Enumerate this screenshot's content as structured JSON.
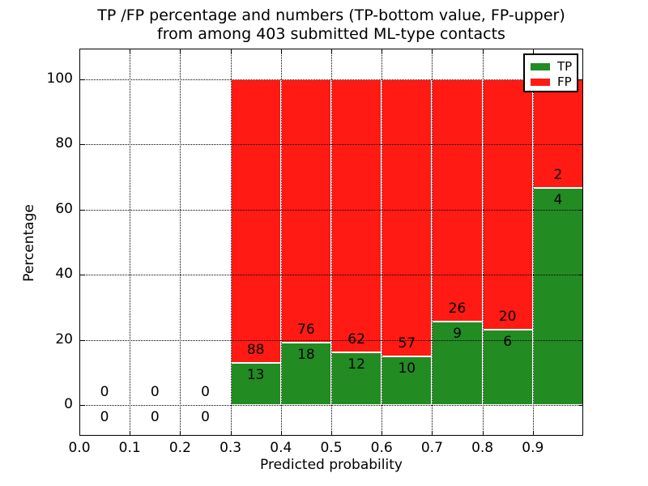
{
  "figure": {
    "title_line1": "TP /FP percentage and numbers (TP-bottom value, FP-upper)",
    "title_line2": "from among 403 submitted ML-type contacts",
    "xlabel": "Predicted probability",
    "ylabel": "Percentage"
  },
  "legend": [
    {
      "label": "TP",
      "color": "#228b22"
    },
    {
      "label": "FP",
      "color": "#ff1a13"
    }
  ],
  "chart_data": {
    "type": "bar",
    "stacked": true,
    "title": "TP /FP percentage and numbers (TP-bottom value, FP-upper) from among 403 submitted ML-type contacts",
    "xlabel": "Predicted probability",
    "ylabel": "Percentage",
    "xlim": [
      0.0,
      1.0
    ],
    "ylim": [
      -9.5,
      109.5
    ],
    "xticks": [
      0.0,
      0.1,
      0.2,
      0.3,
      0.4,
      0.5,
      0.6,
      0.7,
      0.8,
      0.9
    ],
    "yticks": [
      0,
      20,
      40,
      60,
      80,
      100
    ],
    "grid": true,
    "grid_style": "dotted",
    "legend_position": "upper right",
    "bin_width": 0.1,
    "categories": [
      "0.0-0.1",
      "0.1-0.2",
      "0.2-0.3",
      "0.3-0.4",
      "0.4-0.5",
      "0.5-0.6",
      "0.6-0.7",
      "0.7-0.8",
      "0.8-0.9",
      "0.9-1.0"
    ],
    "series": [
      {
        "name": "TP",
        "color": "#228b22",
        "counts": [
          0,
          0,
          0,
          13,
          18,
          12,
          10,
          9,
          6,
          4
        ]
      },
      {
        "name": "FP",
        "color": "#ff1a13",
        "counts": [
          0,
          0,
          0,
          88,
          76,
          62,
          57,
          26,
          20,
          2
        ]
      }
    ],
    "tp_percent_of_bin": [
      0,
      0,
      0,
      12.9,
      19.1,
      16.2,
      14.9,
      25.7,
      23.1,
      66.7
    ],
    "nonempty_bins_stack_to_percent": 100,
    "total_contacts": 403
  }
}
